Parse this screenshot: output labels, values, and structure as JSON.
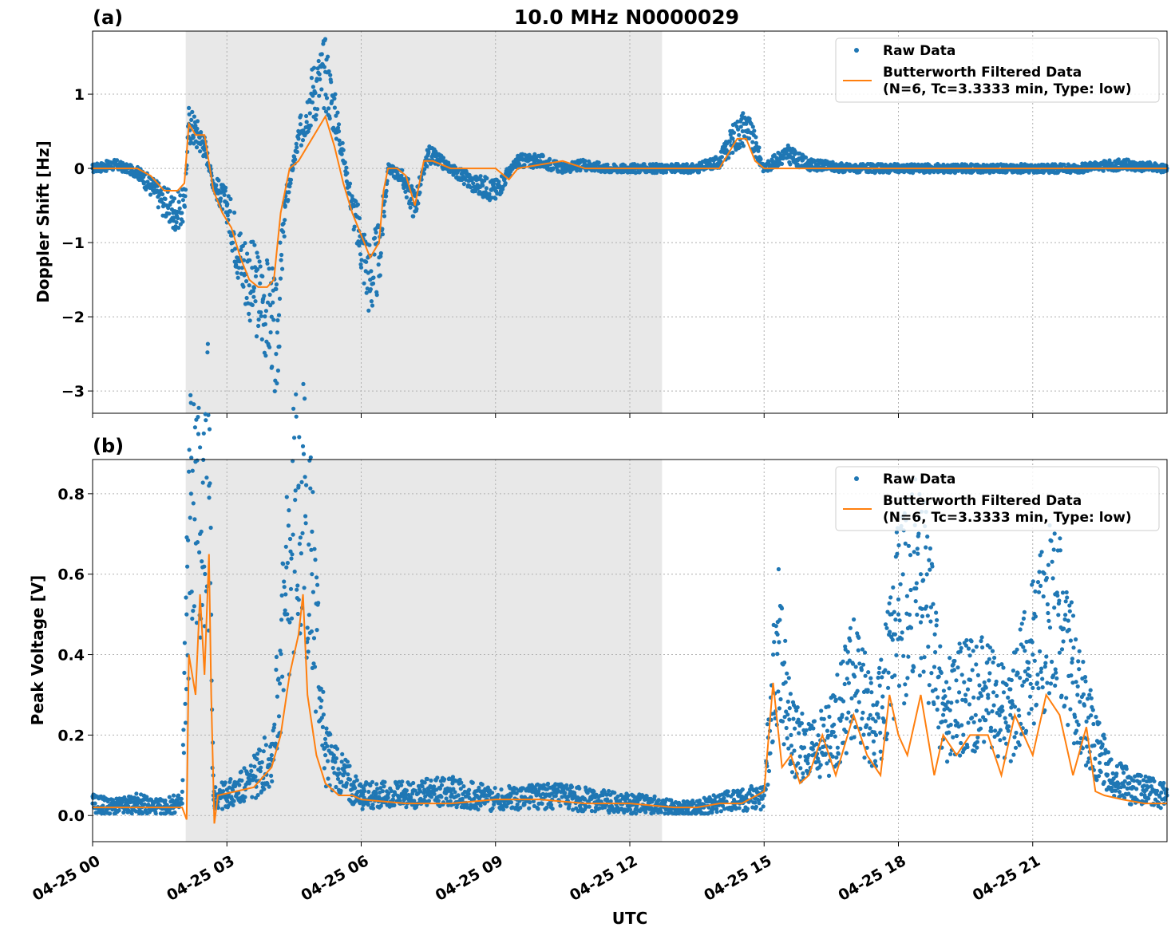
{
  "chart_data": [
    {
      "type": "scatter",
      "panel_label": "(a)",
      "title": "10.0 MHz N0000029",
      "xlabel": "",
      "ylabel": "Doppler Shift [Hz]",
      "x_range_hours": [
        0,
        24
      ],
      "ylim": [
        -3.3,
        1.85
      ],
      "yticks": [
        1,
        0,
        -1,
        -2,
        -3
      ],
      "ytick_labels": [
        "1",
        "0",
        "−1",
        "−2",
        "−3"
      ],
      "shaded_interval_hours": [
        2.08,
        12.72
      ],
      "grid": true,
      "legend_position": "top-right",
      "series": [
        {
          "name": "Raw Data",
          "kind": "points",
          "color": "#1f77b4",
          "x": [
            0,
            0.5,
            1,
            1.4,
            1.8,
            2.05,
            2.15,
            2.3,
            2.5,
            2.7,
            3.0,
            3.3,
            3.6,
            3.8,
            4.0,
            4.1,
            4.3,
            4.6,
            4.9,
            5.2,
            5.5,
            5.8,
            6.0,
            6.2,
            6.4,
            6.6,
            6.9,
            7.2,
            7.5,
            8.0,
            8.5,
            9.0,
            9.5,
            10.0,
            10.5,
            11.0,
            11.5,
            12.0,
            12.5,
            13.0,
            13.5,
            14.0,
            14.3,
            14.6,
            15.0,
            15.5,
            16.0,
            17.0,
            18.0,
            19.0,
            20.0,
            21.0,
            22.0,
            23.0,
            24.0
          ],
          "y": [
            0.0,
            0.05,
            -0.05,
            -0.3,
            -0.6,
            -0.5,
            0.6,
            0.5,
            0.3,
            -0.2,
            -0.5,
            -1.2,
            -1.6,
            -1.8,
            -2.0,
            -2.5,
            -0.5,
            0.4,
            1.0,
            1.3,
            0.5,
            -0.5,
            -1.0,
            -1.5,
            -1.2,
            0.0,
            -0.1,
            -0.5,
            0.2,
            0.0,
            -0.2,
            -0.3,
            0.1,
            0.1,
            0.0,
            0.05,
            0.0,
            0.0,
            0.0,
            0.0,
            0.0,
            0.1,
            0.4,
            0.6,
            0.0,
            0.2,
            0.05,
            0.0,
            0.0,
            0.0,
            0.0,
            0.0,
            0.0,
            0.05,
            0.0
          ]
        },
        {
          "name": "Butterworth Filtered Data\n(N=6, Tc=3.3333 min, Type: low)",
          "kind": "line",
          "color": "#ff7f0e",
          "x": [
            0,
            0.5,
            1,
            1.3,
            1.6,
            1.9,
            2.05,
            2.15,
            2.3,
            2.5,
            2.7,
            2.9,
            3.1,
            3.3,
            3.5,
            3.7,
            3.9,
            4.05,
            4.2,
            4.4,
            4.6,
            4.8,
            5.0,
            5.2,
            5.4,
            5.6,
            5.8,
            6.0,
            6.2,
            6.4,
            6.5,
            6.6,
            6.8,
            7.0,
            7.2,
            7.4,
            7.6,
            8.0,
            8.5,
            9.0,
            9.3,
            9.5,
            10.0,
            10.5,
            11.0,
            11.5,
            12.0,
            12.5,
            13.0,
            13.5,
            14.0,
            14.2,
            14.4,
            14.6,
            14.8,
            15.0,
            15.5,
            16.0,
            17.0,
            18.0,
            19.0,
            20.0,
            21.0,
            22.0,
            23.0,
            24.0
          ],
          "y": [
            0.0,
            0.0,
            0.0,
            -0.1,
            -0.3,
            -0.3,
            -0.2,
            0.6,
            0.45,
            0.45,
            -0.3,
            -0.6,
            -0.8,
            -1.2,
            -1.5,
            -1.6,
            -1.6,
            -1.5,
            -0.6,
            0.0,
            0.1,
            0.3,
            0.5,
            0.7,
            0.3,
            -0.2,
            -0.6,
            -0.9,
            -1.2,
            -1.0,
            -0.3,
            0.0,
            0.0,
            -0.1,
            -0.5,
            0.1,
            0.1,
            0.0,
            0.0,
            0.0,
            -0.15,
            0.0,
            0.05,
            0.1,
            0.0,
            0.0,
            0.0,
            0.0,
            0.0,
            0.0,
            0.0,
            0.2,
            0.4,
            0.4,
            0.1,
            0.0,
            0.0,
            0.0,
            0.0,
            0.0,
            0.0,
            0.0,
            0.0,
            0.0,
            0.0,
            0.0
          ]
        }
      ]
    },
    {
      "type": "scatter",
      "panel_label": "(b)",
      "title": "",
      "xlabel": "UTC",
      "ylabel": "Peak Voltage [V]",
      "x_range_hours": [
        0,
        24
      ],
      "ylim": [
        -0.065,
        0.885
      ],
      "yticks": [
        0.8,
        0.6,
        0.4,
        0.2,
        0.0
      ],
      "ytick_labels": [
        "0.8",
        "0.6",
        "0.4",
        "0.2",
        "0.0"
      ],
      "shaded_interval_hours": [
        2.08,
        12.72
      ],
      "grid": true,
      "legend_position": "top-right",
      "series": [
        {
          "name": "Raw Data",
          "kind": "points",
          "color": "#1f77b4",
          "x": [
            0,
            0.5,
            1,
            1.5,
            2.0,
            2.1,
            2.2,
            2.4,
            2.6,
            2.7,
            3.0,
            3.5,
            4.0,
            4.3,
            4.6,
            4.9,
            5.2,
            5.6,
            6.0,
            7.0,
            8.0,
            9.0,
            10.0,
            11.0,
            12.0,
            13.0,
            13.5,
            14.0,
            14.5,
            15.0,
            15.3,
            15.6,
            16.0,
            16.5,
            17.0,
            17.5,
            18.0,
            18.5,
            19.0,
            19.5,
            20.0,
            20.5,
            21.0,
            21.5,
            22.0,
            22.5,
            23.0,
            23.5,
            24.0
          ],
          "y": [
            0.03,
            0.02,
            0.03,
            0.02,
            0.03,
            0.5,
            0.8,
            0.7,
            0.82,
            0.05,
            0.05,
            0.08,
            0.15,
            0.5,
            0.82,
            0.6,
            0.15,
            0.1,
            0.05,
            0.05,
            0.06,
            0.04,
            0.05,
            0.04,
            0.03,
            0.02,
            0.02,
            0.03,
            0.04,
            0.05,
            0.45,
            0.2,
            0.15,
            0.2,
            0.35,
            0.2,
            0.5,
            0.6,
            0.25,
            0.3,
            0.3,
            0.25,
            0.4,
            0.55,
            0.3,
            0.15,
            0.08,
            0.06,
            0.05
          ]
        },
        {
          "name": "Butterworth Filtered Data\n(N=6, Tc=3.3333 min, Type: low)",
          "kind": "line",
          "color": "#ff7f0e",
          "x": [
            0,
            0.5,
            1,
            1.5,
            2.0,
            2.1,
            2.15,
            2.3,
            2.4,
            2.5,
            2.6,
            2.65,
            2.72,
            2.8,
            3.2,
            3.6,
            4.0,
            4.2,
            4.4,
            4.6,
            4.7,
            4.8,
            5.0,
            5.2,
            5.5,
            5.8,
            6.0,
            7.0,
            8.0,
            9.0,
            10.0,
            11.0,
            12.0,
            13.0,
            13.5,
            14.0,
            14.5,
            15.0,
            15.2,
            15.4,
            15.6,
            15.8,
            16.0,
            16.3,
            16.6,
            17.0,
            17.3,
            17.6,
            17.8,
            18.0,
            18.2,
            18.5,
            18.8,
            19.0,
            19.3,
            19.6,
            20.0,
            20.3,
            20.6,
            21.0,
            21.3,
            21.6,
            21.9,
            22.2,
            22.4,
            22.6,
            23.0,
            23.5,
            24.0
          ],
          "y": [
            0.02,
            0.02,
            0.02,
            0.02,
            0.02,
            -0.01,
            0.4,
            0.3,
            0.55,
            0.35,
            0.65,
            0.3,
            -0.02,
            0.05,
            0.06,
            0.07,
            0.12,
            0.2,
            0.35,
            0.45,
            0.55,
            0.3,
            0.15,
            0.08,
            0.05,
            0.05,
            0.04,
            0.03,
            0.03,
            0.04,
            0.04,
            0.03,
            0.03,
            0.02,
            0.02,
            0.03,
            0.03,
            0.06,
            0.33,
            0.12,
            0.15,
            0.08,
            0.1,
            0.2,
            0.1,
            0.25,
            0.15,
            0.1,
            0.3,
            0.2,
            0.15,
            0.3,
            0.1,
            0.2,
            0.15,
            0.2,
            0.2,
            0.1,
            0.25,
            0.15,
            0.3,
            0.25,
            0.1,
            0.22,
            0.06,
            0.05,
            0.04,
            0.03,
            0.03
          ]
        }
      ]
    }
  ],
  "x_axis": {
    "ticks_hours": [
      0,
      3,
      6,
      9,
      12,
      15,
      18,
      21
    ],
    "tick_labels": [
      "04-25 00",
      "04-25 03",
      "04-25 06",
      "04-25 09",
      "04-25 12",
      "04-25 15",
      "04-25 18",
      "04-25 21"
    ]
  },
  "legend": {
    "raw_label": "Raw Data",
    "filtered_label_line1": "Butterworth Filtered Data",
    "filtered_label_line2": "(N=6, Tc=3.3333 min, Type: low)"
  },
  "colors": {
    "raw": "#1f77b4",
    "filtered": "#ff7f0e",
    "shade": "#e8e8e8"
  }
}
